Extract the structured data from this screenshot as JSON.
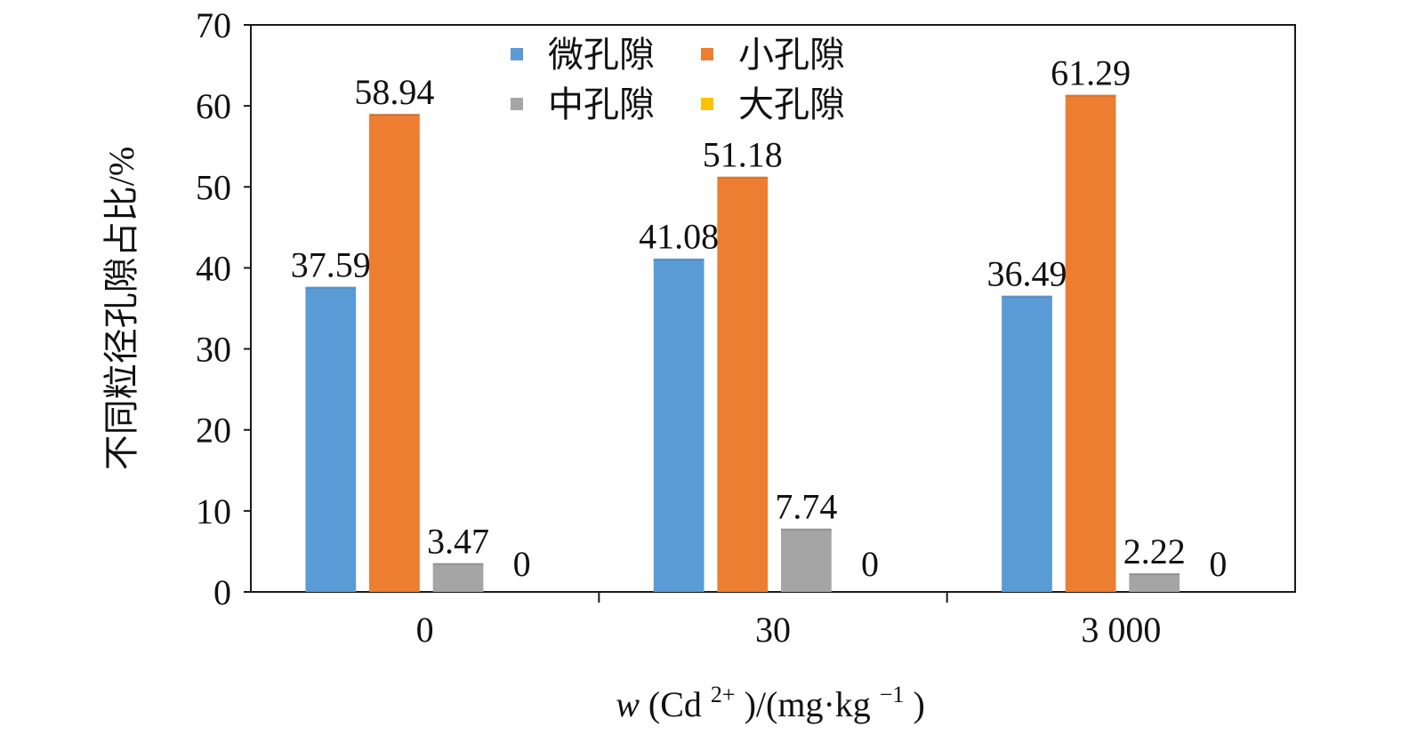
{
  "chart_data": {
    "type": "bar",
    "categories": [
      "0",
      "30",
      "3 000"
    ],
    "series": [
      {
        "name": "微孔隙",
        "color": "#5B9BD5",
        "values": [
          37.59,
          41.08,
          36.49
        ]
      },
      {
        "name": "小孔隙",
        "color": "#ED7D31",
        "values": [
          58.94,
          51.18,
          61.29
        ]
      },
      {
        "name": "中孔隙",
        "color": "#A5A5A5",
        "values": [
          3.47,
          7.74,
          2.22
        ]
      },
      {
        "name": "大孔隙",
        "color": "#FFC000",
        "values": [
          0,
          0,
          0
        ]
      }
    ],
    "data_labels": [
      [
        "37.59",
        "41.08",
        "36.49"
      ],
      [
        "58.94",
        "51.18",
        "61.29"
      ],
      [
        "3.47",
        "7.74",
        "2.22"
      ],
      [
        "0",
        "0",
        "0"
      ]
    ],
    "y_ticks": [
      "0",
      "10",
      "20",
      "30",
      "40",
      "50",
      "60",
      "70"
    ],
    "ylim": [
      0,
      70
    ],
    "ylabel": "不同粒径孔隙占比/%",
    "xlabel": {
      "prefix": "w",
      "open": "(Cd",
      "sup1": "2+",
      "mid": ")/(mg·kg",
      "sup2": "−1",
      "close": ")"
    },
    "legend_position": "top-center",
    "grid": false
  }
}
